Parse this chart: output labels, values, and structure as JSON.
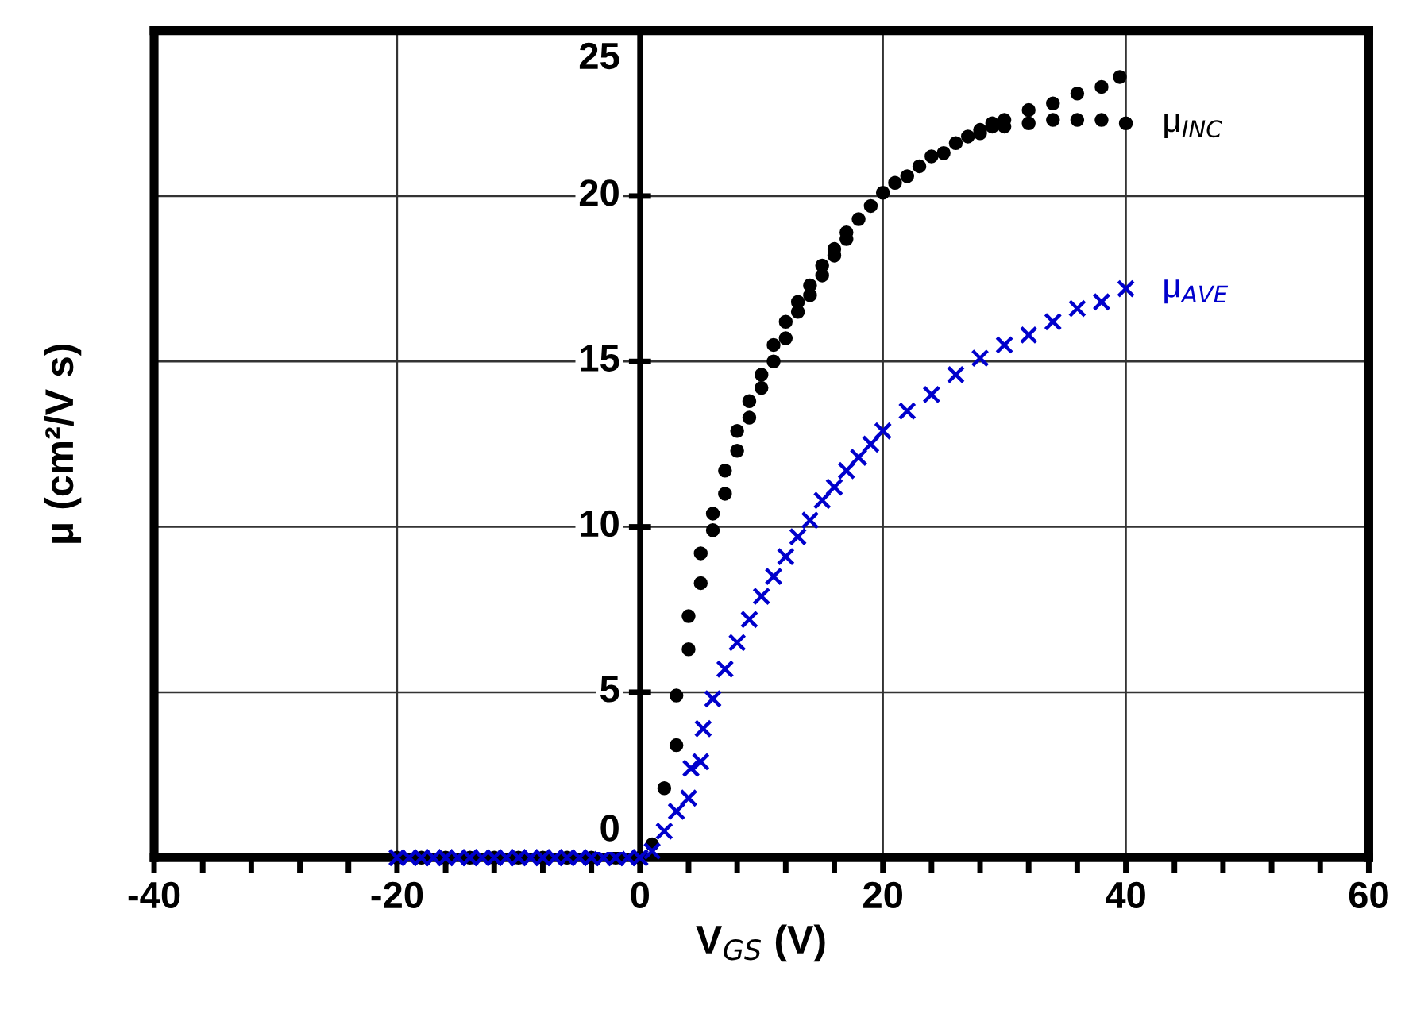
{
  "chart_data": {
    "type": "scatter",
    "xlabel": "V$_{GS}$ (V)",
    "ylabel": "μ (cm²/V s)",
    "xlim": [
      -40,
      60
    ],
    "ylim": [
      0,
      25
    ],
    "xticks": [
      -40,
      {
        "value": -36,
        "label": null
      },
      {
        "value": -32,
        "label": null
      },
      {
        "value": -28,
        "label": null
      },
      {
        "value": -24,
        "label": null
      },
      -20,
      {
        "value": -16,
        "label": null
      },
      {
        "value": -12,
        "label": null
      },
      {
        "value": -8,
        "label": null
      },
      {
        "value": -4,
        "label": null
      },
      0,
      {
        "value": 4,
        "label": null
      },
      {
        "value": 8,
        "label": null
      },
      {
        "value": 12,
        "label": null
      },
      {
        "value": 16,
        "label": null
      },
      20,
      {
        "value": 24,
        "label": null
      },
      {
        "value": 28,
        "label": null
      },
      {
        "value": 32,
        "label": null
      },
      {
        "value": 36,
        "label": null
      },
      40,
      {
        "value": 44,
        "label": null
      },
      {
        "value": 48,
        "label": null
      },
      {
        "value": 52,
        "label": null
      },
      {
        "value": 56,
        "label": null
      },
      60
    ],
    "yticks": [
      0,
      5,
      10,
      15,
      20,
      25
    ],
    "grid": true,
    "legend": false,
    "series": [
      {
        "name": "μ$_{INC}$",
        "color": "#000000",
        "marker": "circle",
        "x": [
          -20,
          -18,
          -16,
          -14,
          -12,
          -10,
          -8,
          -6,
          -4,
          -2,
          0,
          1,
          2,
          3,
          4,
          5,
          6,
          7,
          8,
          9,
          10,
          11,
          12,
          13,
          14,
          15,
          16,
          17,
          18,
          19,
          20,
          21,
          22,
          23,
          24,
          25,
          26,
          27,
          28,
          29,
          30,
          32,
          34,
          36,
          38,
          39.5,
          3,
          4,
          5,
          6,
          7,
          8,
          9,
          10,
          11,
          12,
          13,
          14,
          15,
          16,
          17,
          28,
          29,
          30,
          32,
          34,
          36,
          38,
          40
        ],
        "values": [
          0,
          0,
          0,
          0,
          0,
          0,
          0,
          0,
          0,
          0,
          0,
          0.4,
          2.1,
          4.9,
          7.3,
          9.2,
          10.4,
          11.7,
          12.9,
          13.8,
          14.6,
          15.5,
          16.2,
          16.8,
          17.3,
          17.9,
          18.4,
          18.9,
          19.3,
          19.7,
          20.1,
          20.4,
          20.6,
          20.9,
          21.2,
          21.3,
          21.6,
          21.8,
          22.0,
          22.2,
          22.3,
          22.6,
          22.8,
          23.1,
          23.3,
          23.6,
          3.4,
          6.3,
          8.3,
          9.9,
          11.0,
          12.3,
          13.3,
          14.2,
          15.0,
          15.7,
          16.5,
          17.0,
          17.6,
          18.2,
          18.7,
          21.9,
          22.1,
          22.1,
          22.2,
          22.3,
          22.3,
          22.3,
          22.2
        ]
      },
      {
        "name": "μ$_{AVE}$",
        "color": "#0000cc",
        "marker": "cross",
        "x": [
          -20,
          -19,
          -18,
          -17,
          -16,
          -15,
          -14,
          -13,
          -12,
          -11,
          -10,
          -9,
          -8,
          -7,
          -6,
          -5,
          -4,
          -3,
          -2,
          -1,
          0,
          1,
          2,
          3,
          4,
          4.2,
          5,
          5.2,
          6,
          7,
          8,
          9,
          10,
          11,
          12,
          13,
          14,
          15,
          16,
          17,
          18,
          19,
          20,
          22,
          24,
          26,
          28,
          30,
          32,
          34,
          36,
          38,
          40
        ],
        "values": [
          0,
          0,
          0,
          0,
          0,
          0,
          0,
          0,
          0,
          0,
          0,
          0,
          0,
          0,
          0,
          0,
          0,
          0,
          0,
          0,
          0,
          0.2,
          0.8,
          1.4,
          1.8,
          2.7,
          2.9,
          3.9,
          4.8,
          5.7,
          6.5,
          7.2,
          7.9,
          8.5,
          9.1,
          9.7,
          10.2,
          10.8,
          11.2,
          11.7,
          12.1,
          12.5,
          12.9,
          13.5,
          14.0,
          14.6,
          15.1,
          15.5,
          15.8,
          16.2,
          16.6,
          16.8,
          17.2
        ]
      }
    ]
  }
}
